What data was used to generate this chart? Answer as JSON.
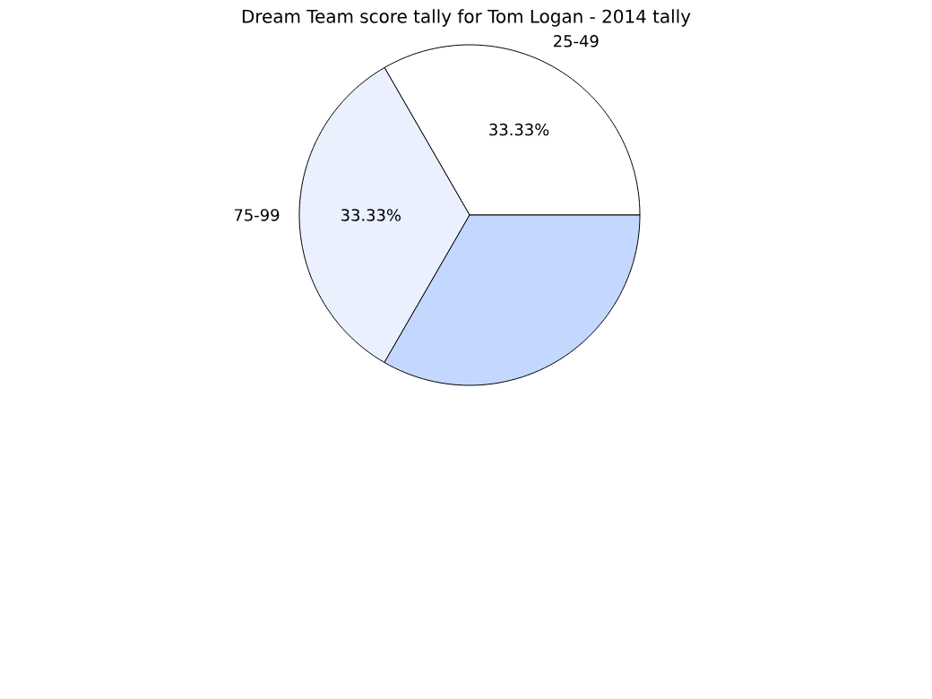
{
  "chart_data": {
    "type": "pie",
    "title": "Dream Team score tally for Tom Logan - 2014 tally",
    "categories": [
      "25-49",
      "75-99",
      null
    ],
    "values": [
      33.33,
      33.33,
      33.34
    ],
    "colors": [
      "#ffffff",
      "#eaf0fe",
      "#c4d8ff"
    ],
    "value_labels": [
      "33.33%",
      "33.33%",
      null
    ]
  }
}
